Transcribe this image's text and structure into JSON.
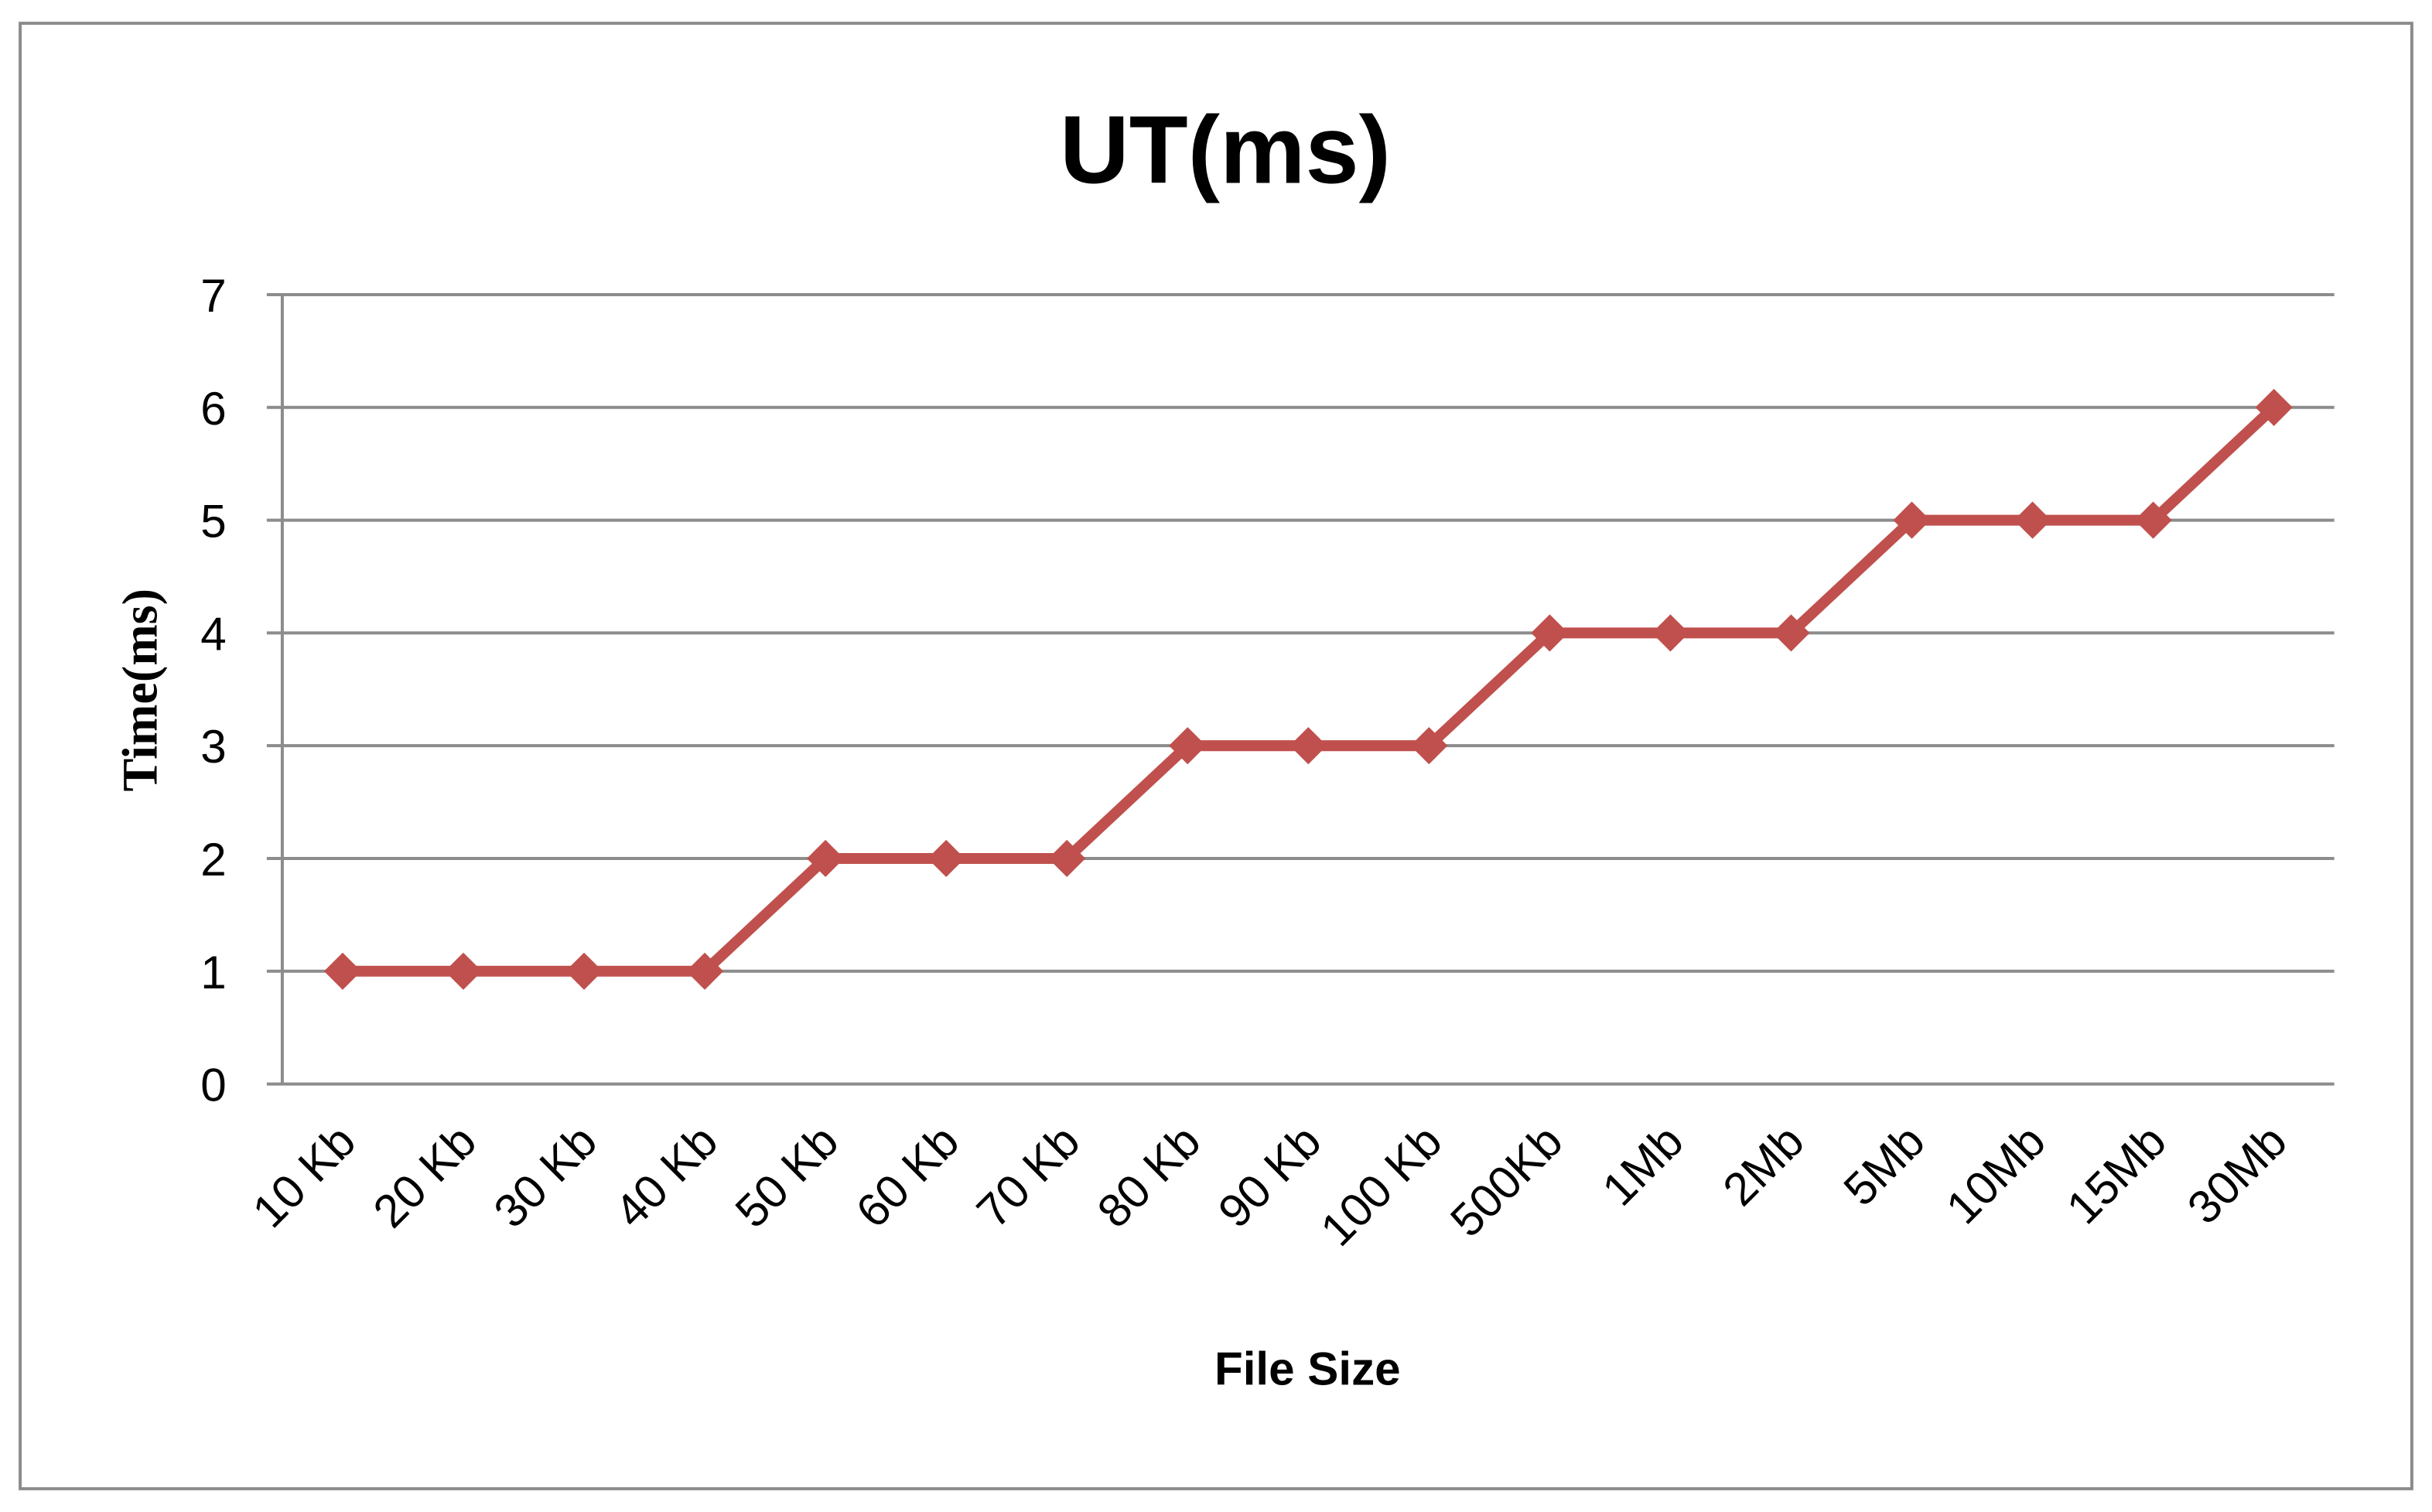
{
  "chart_data": {
    "type": "line",
    "title": "UT(ms)",
    "x_label": "File Size",
    "y_label": "Time(ms)",
    "categories": [
      "10 Kb",
      "20 Kb",
      "30 Kb",
      "40 Kb",
      "50 Kb",
      "60 Kb",
      "70 Kb",
      "80 Kb",
      "90 Kb",
      "100 Kb",
      "500Kb",
      "1Mb",
      "2Mb",
      "5Mb",
      "10Mb",
      "15Mb",
      "30Mb"
    ],
    "values": [
      1,
      1,
      1,
      1,
      2,
      2,
      2,
      3,
      3,
      3,
      4,
      4,
      4,
      5,
      5,
      5,
      6
    ],
    "color": "#c0504d",
    "ylim": [
      0,
      7
    ],
    "yticks": [
      0,
      1,
      2,
      3,
      4,
      5,
      6,
      7
    ],
    "grid": true
  }
}
